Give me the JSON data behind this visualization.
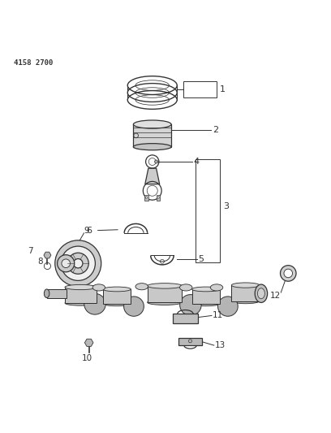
{
  "title": "4158 2700",
  "bg_color": "#ffffff",
  "line_color": "#333333",
  "text_color": "#333333"
}
